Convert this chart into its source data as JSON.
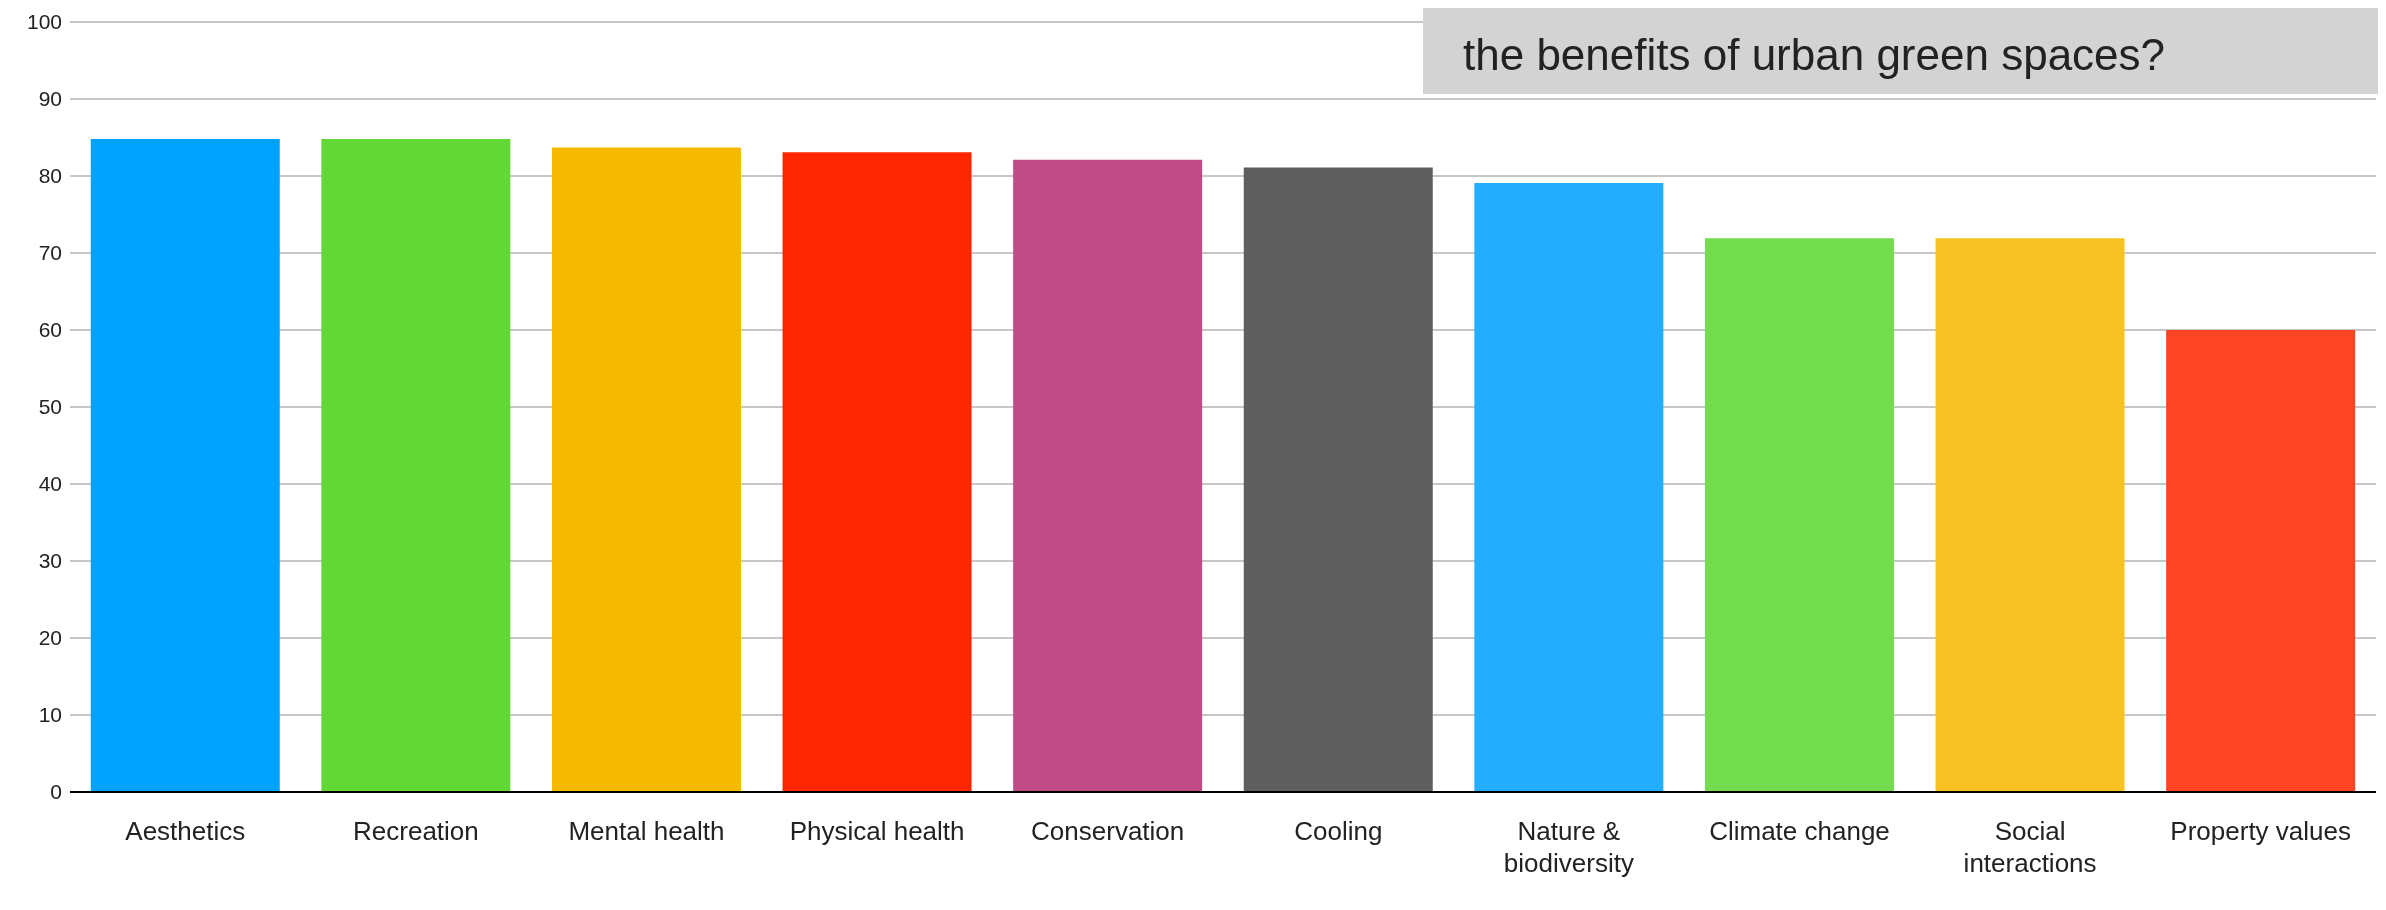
{
  "chart_data": {
    "type": "bar",
    "title": "the benefits of urban green spaces?",
    "categories": [
      "Aesthetics",
      "Recreation",
      "Mental health",
      "Physical health",
      "Conservation",
      "Cooling",
      "Nature & biodiversity",
      "Climate change",
      "Social interactions",
      "Property values"
    ],
    "values": [
      84.8,
      84.8,
      83.7,
      83.1,
      82.1,
      81.1,
      79.1,
      71.9,
      71.9,
      60
    ],
    "colors": [
      "#00a2ff",
      "#61d836",
      "#f8ba00",
      "#ff2600",
      "#c04b86",
      "#5e5e5e",
      "#22adff",
      "#73dd4f",
      "#f8c224",
      "#ff4424"
    ],
    "ylim": [
      0,
      100
    ],
    "yticks": [
      0,
      10,
      20,
      30,
      40,
      50,
      60,
      70,
      80,
      90,
      100
    ],
    "grid": "y",
    "legend": false
  }
}
